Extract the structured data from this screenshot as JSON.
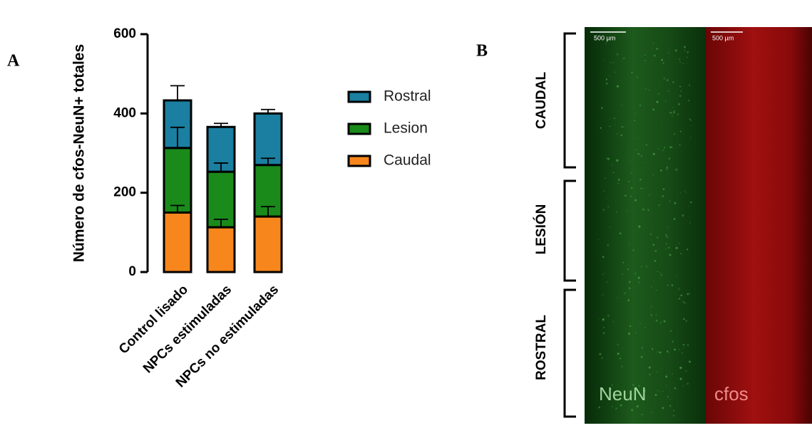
{
  "chart_data": {
    "type": "stacked-bar",
    "ylabel": "Número de cfos-NeuN+ totales",
    "categories": [
      "Control lisado",
      "NPCs estimuladas",
      "NPCs no estimuladas"
    ],
    "series": [
      {
        "name": "Caudal",
        "color": "#f7861c",
        "values": [
          150,
          113,
          140
        ],
        "errors": [
          18,
          20,
          25
        ]
      },
      {
        "name": "Lesion",
        "color": "#1a8a1a",
        "values": [
          163,
          140,
          130
        ],
        "errors": [
          52,
          22,
          17
        ]
      },
      {
        "name": "Rostral",
        "color": "#1a7fa0",
        "values": [
          120,
          113,
          130
        ],
        "errors": [
          37,
          9,
          10
        ]
      }
    ],
    "ylim": [
      0,
      600
    ],
    "yticks": [
      0,
      200,
      400,
      600
    ]
  },
  "panel_labels": [
    "A",
    "B"
  ],
  "micrograph": {
    "regions": [
      "CAUDAL",
      "LESIÓN",
      "ROSTRAL"
    ],
    "channels": [
      "NeuN",
      "cfos"
    ],
    "scale_bar": "500 µm"
  }
}
